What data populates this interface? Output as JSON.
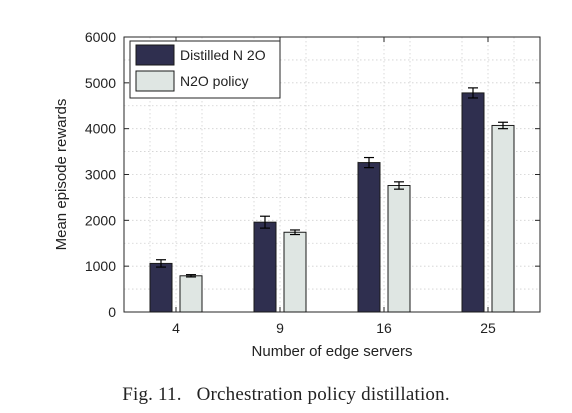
{
  "chart_data": {
    "type": "bar",
    "categories": [
      "4",
      "9",
      "16",
      "25"
    ],
    "series": [
      {
        "name": "Distilled N 2O",
        "color": "#2f2f4f",
        "values": [
          1060,
          1960,
          3260,
          4780
        ],
        "errors": [
          80,
          130,
          110,
          110
        ]
      },
      {
        "name": "N2O policy",
        "color": "#dfe6e3",
        "values": [
          790,
          1740,
          2760,
          4070
        ],
        "errors": [
          25,
          50,
          80,
          70
        ]
      }
    ],
    "xlabel": "Number of edge servers",
    "ylabel": "Mean episode rewards",
    "ylim": [
      0,
      6000
    ],
    "yticks": [
      0,
      1000,
      2000,
      3000,
      4000,
      5000,
      6000
    ],
    "grid": true,
    "legend_position": "top-left"
  },
  "caption": {
    "label": "Fig. 11.",
    "text": "Orchestration policy distillation."
  }
}
